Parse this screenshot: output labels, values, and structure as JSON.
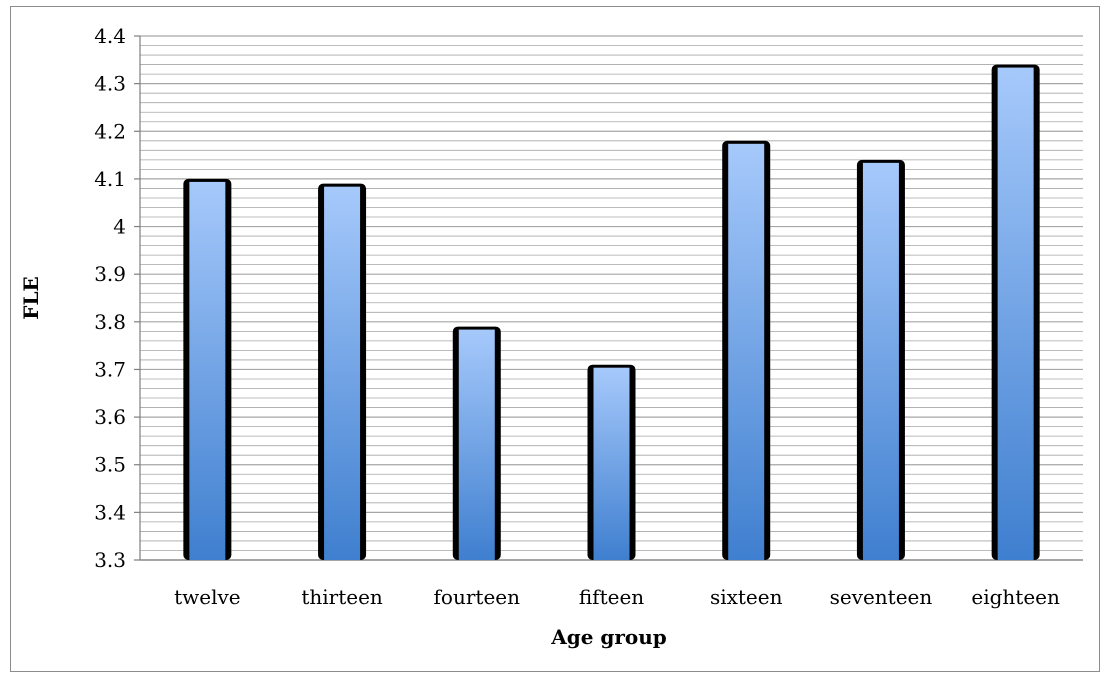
{
  "chart_data": {
    "type": "bar",
    "categories": [
      "twelve",
      "thirteen",
      "fourteen",
      "fifteen",
      "sixteen",
      "seventeen",
      "eighteen"
    ],
    "values": [
      4.1,
      4.09,
      3.79,
      3.71,
      4.18,
      4.14,
      4.34
    ],
    "title": "",
    "xlabel": "Age group",
    "ylabel": "FLE",
    "ylim": [
      3.3,
      4.4
    ],
    "yticks": [
      "3.3",
      "3.4",
      "3.5",
      "3.6",
      "3.7",
      "3.8",
      "3.9",
      "4",
      "4.1",
      "4.2",
      "4.3",
      "4.4"
    ],
    "grid": true,
    "legend": "none",
    "colors": {
      "bar_top": "#a6c9fb",
      "bar_bottom": "#3f7fcf",
      "bar_edge": "#000000",
      "gridline": "#a6a6a6"
    }
  }
}
